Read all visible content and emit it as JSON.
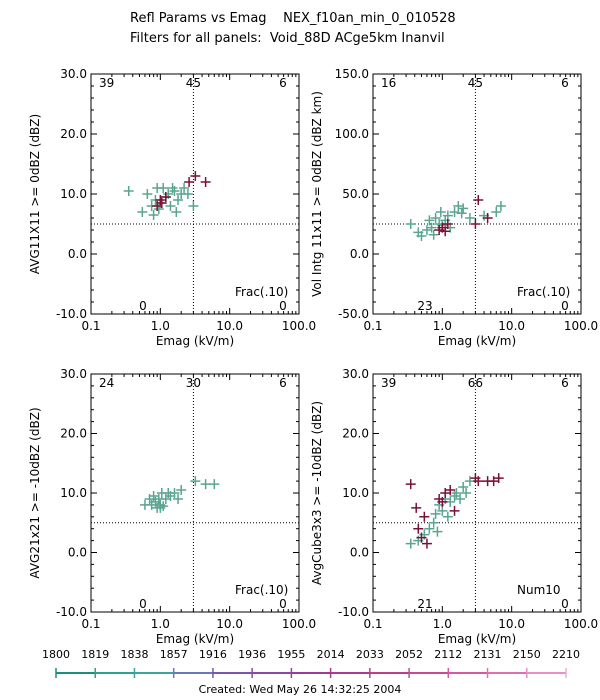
{
  "header": {
    "title": "Refl Params vs Emag    NEX_f10an_min_0_010528",
    "subtitle": "Filters for all panels:  Void_88D ACge5km Inanvil"
  },
  "footer": {
    "created": "Created: Wed May 26 14:32:25 2004"
  },
  "time_scale": {
    "labels": [
      "1800",
      "1819",
      "1838",
      "1857",
      "1916",
      "1936",
      "1955",
      "2014",
      "2033",
      "2052",
      "2112",
      "2131",
      "2150",
      "2210"
    ],
    "colors": [
      "#1a8f7a",
      "#2aa28c",
      "#3aa59a",
      "#6a78b8",
      "#7a55a8",
      "#8a4aa0",
      "#9a3c98",
      "#aa3a92",
      "#b8408c",
      "#c84a90",
      "#d25aa0",
      "#dc70b4",
      "#e690c8",
      "#eeaad8"
    ]
  },
  "chart_data": [
    {
      "type": "scatter",
      "title": "",
      "xlabel": "Emag (kV/m)",
      "ylabel": "AVG11X11 >= 0dBZ (dBZ)",
      "xscale": "log",
      "xlim": [
        0.1,
        100.0
      ],
      "ylim": [
        -10.0,
        30.0
      ],
      "xticks": [
        "0.1",
        "1.0",
        "10.0",
        "100.0"
      ],
      "yticks": [
        "-10.0",
        "0.0",
        "10.0",
        "20.0",
        "30.0"
      ],
      "ref_x": 3.0,
      "ref_y": 5.0,
      "corner_counts": {
        "top_left": "39",
        "top_mid": "45",
        "top_right": "6",
        "bottom_left": "0",
        "bottom_right": "0"
      },
      "label": "Frac(.10)",
      "series": [
        {
          "color": "#5aa58f",
          "points": [
            [
              0.35,
              10.5
            ],
            [
              0.55,
              7
            ],
            [
              0.65,
              10
            ],
            [
              0.75,
              8
            ],
            [
              0.8,
              6.5
            ],
            [
              0.85,
              9
            ],
            [
              0.9,
              11
            ],
            [
              0.95,
              7.5
            ],
            [
              1.0,
              8.5
            ],
            [
              1.1,
              11
            ],
            [
              1.2,
              9.5
            ],
            [
              1.3,
              10
            ],
            [
              1.4,
              8
            ],
            [
              1.5,
              11
            ],
            [
              1.6,
              10.5
            ],
            [
              1.8,
              9
            ],
            [
              2.0,
              10
            ],
            [
              2.2,
              11
            ],
            [
              2.5,
              10
            ],
            [
              3.0,
              8
            ],
            [
              1.7,
              7
            ]
          ]
        },
        {
          "color": "#7a1036",
          "points": [
            [
              0.9,
              8
            ],
            [
              1.0,
              9
            ],
            [
              1.05,
              8.5
            ],
            [
              1.2,
              9.5
            ],
            [
              2.6,
              12
            ],
            [
              3.2,
              13
            ],
            [
              4.5,
              12
            ]
          ]
        }
      ]
    },
    {
      "type": "scatter",
      "title": "",
      "xlabel": "Emag (kV/m)",
      "ylabel": "Vol Intg 11x11 >= 0dBZ (dBZ km)",
      "xscale": "log",
      "xlim": [
        0.1,
        100.0
      ],
      "ylim": [
        -50.0,
        150.0
      ],
      "xticks": [
        "0.1",
        "1.0",
        "10.0",
        "100.0"
      ],
      "yticks": [
        "-50.0",
        "0.0",
        "50.0",
        "100.0",
        "150.0"
      ],
      "ref_x": 3.0,
      "ref_y": 25.0,
      "corner_counts": {
        "top_left": "16",
        "top_mid": "45",
        "top_right": "6",
        "bottom_left": "23",
        "bottom_right": "0"
      },
      "label": "Frac(.10)",
      "series": [
        {
          "color": "#5aa58f",
          "points": [
            [
              0.35,
              25
            ],
            [
              0.45,
              18
            ],
            [
              0.5,
              15
            ],
            [
              0.6,
              20
            ],
            [
              0.65,
              28
            ],
            [
              0.7,
              22
            ],
            [
              0.75,
              16
            ],
            [
              0.8,
              30
            ],
            [
              0.9,
              25
            ],
            [
              0.95,
              35
            ],
            [
              1.0,
              24
            ],
            [
              1.1,
              28
            ],
            [
              1.2,
              32
            ],
            [
              1.3,
              22
            ],
            [
              1.5,
              35
            ],
            [
              1.7,
              40
            ],
            [
              1.9,
              34
            ],
            [
              2.0,
              38
            ],
            [
              2.5,
              30
            ],
            [
              4.0,
              32
            ],
            [
              6.0,
              35
            ],
            [
              7.0,
              40
            ]
          ]
        },
        {
          "color": "#7a1036",
          "points": [
            [
              0.9,
              20
            ],
            [
              1.0,
              22
            ],
            [
              1.1,
              19
            ],
            [
              1.2,
              25
            ],
            [
              3.3,
              45
            ],
            [
              3.0,
              25
            ],
            [
              4.5,
              30
            ]
          ]
        }
      ]
    },
    {
      "type": "scatter",
      "title": "",
      "xlabel": "Emag (kV/m)",
      "ylabel": "AVG21x21 >= -10dBZ (dBZ)",
      "xscale": "log",
      "xlim": [
        0.1,
        100.0
      ],
      "ylim": [
        -10.0,
        30.0
      ],
      "xticks": [
        "0.1",
        "1.0",
        "10.0",
        "100.0"
      ],
      "yticks": [
        "-10.0",
        "0.0",
        "10.0",
        "20.0",
        "30.0"
      ],
      "ref_x": 3.0,
      "ref_y": 5.0,
      "corner_counts": {
        "top_left": "24",
        "top_mid": "30",
        "top_right": "6",
        "bottom_left": "0",
        "bottom_right": "0"
      },
      "label": "Frac(.10)",
      "series": [
        {
          "color": "#5aa58f",
          "points": [
            [
              0.6,
              8
            ],
            [
              0.7,
              9
            ],
            [
              0.75,
              8
            ],
            [
              0.8,
              9.5
            ],
            [
              0.85,
              8.5
            ],
            [
              0.9,
              7.5
            ],
            [
              0.95,
              9
            ],
            [
              1.0,
              8
            ],
            [
              1.05,
              10
            ],
            [
              1.1,
              7.8
            ],
            [
              1.2,
              9
            ],
            [
              1.3,
              10
            ],
            [
              1.4,
              9.5
            ],
            [
              1.6,
              10
            ],
            [
              1.8,
              9
            ],
            [
              2.0,
              10.5
            ],
            [
              3.2,
              12
            ],
            [
              4.5,
              11.5
            ],
            [
              6.0,
              11.5
            ],
            [
              1.0,
              7.5
            ]
          ]
        }
      ]
    },
    {
      "type": "scatter",
      "title": "",
      "xlabel": "Emag (kV/m)",
      "ylabel": "AvgCube3x3 >= -10dBZ (dBZ)",
      "xscale": "log",
      "xlim": [
        0.1,
        100.0
      ],
      "ylim": [
        -10.0,
        30.0
      ],
      "xticks": [
        "0.1",
        "1.0",
        "10.0",
        "100.0"
      ],
      "yticks": [
        "-10.0",
        "0.0",
        "10.0",
        "20.0",
        "30.0"
      ],
      "ref_x": 3.0,
      "ref_y": 5.0,
      "corner_counts": {
        "top_left": "39",
        "top_mid": "66",
        "top_right": "6",
        "bottom_left": "21",
        "bottom_right": "0"
      },
      "label": "Num10",
      "series": [
        {
          "color": "#5aa58f",
          "points": [
            [
              0.35,
              1.5
            ],
            [
              0.45,
              2
            ],
            [
              0.55,
              3
            ],
            [
              0.65,
              4
            ],
            [
              0.75,
              5
            ],
            [
              0.8,
              6.5
            ],
            [
              0.85,
              3.5
            ],
            [
              0.9,
              8
            ],
            [
              1.0,
              7
            ],
            [
              1.1,
              9
            ],
            [
              1.2,
              6
            ],
            [
              1.3,
              8.5
            ],
            [
              1.5,
              9.5
            ],
            [
              1.6,
              10
            ],
            [
              1.8,
              9
            ],
            [
              2.0,
              11
            ],
            [
              2.2,
              10
            ],
            [
              2.5,
              12
            ]
          ]
        },
        {
          "color": "#7a1036",
          "points": [
            [
              0.35,
              11.5
            ],
            [
              0.42,
              7.5
            ],
            [
              0.45,
              4
            ],
            [
              0.5,
              2.5
            ],
            [
              0.55,
              6
            ],
            [
              0.6,
              1.5
            ],
            [
              0.9,
              9
            ],
            [
              1.0,
              8.5
            ],
            [
              1.1,
              10
            ],
            [
              1.3,
              10.5
            ],
            [
              1.5,
              7
            ],
            [
              3.0,
              12.5
            ],
            [
              3.3,
              12
            ],
            [
              4.5,
              12
            ],
            [
              5.5,
              12
            ],
            [
              6.5,
              12.5
            ]
          ]
        }
      ]
    }
  ]
}
